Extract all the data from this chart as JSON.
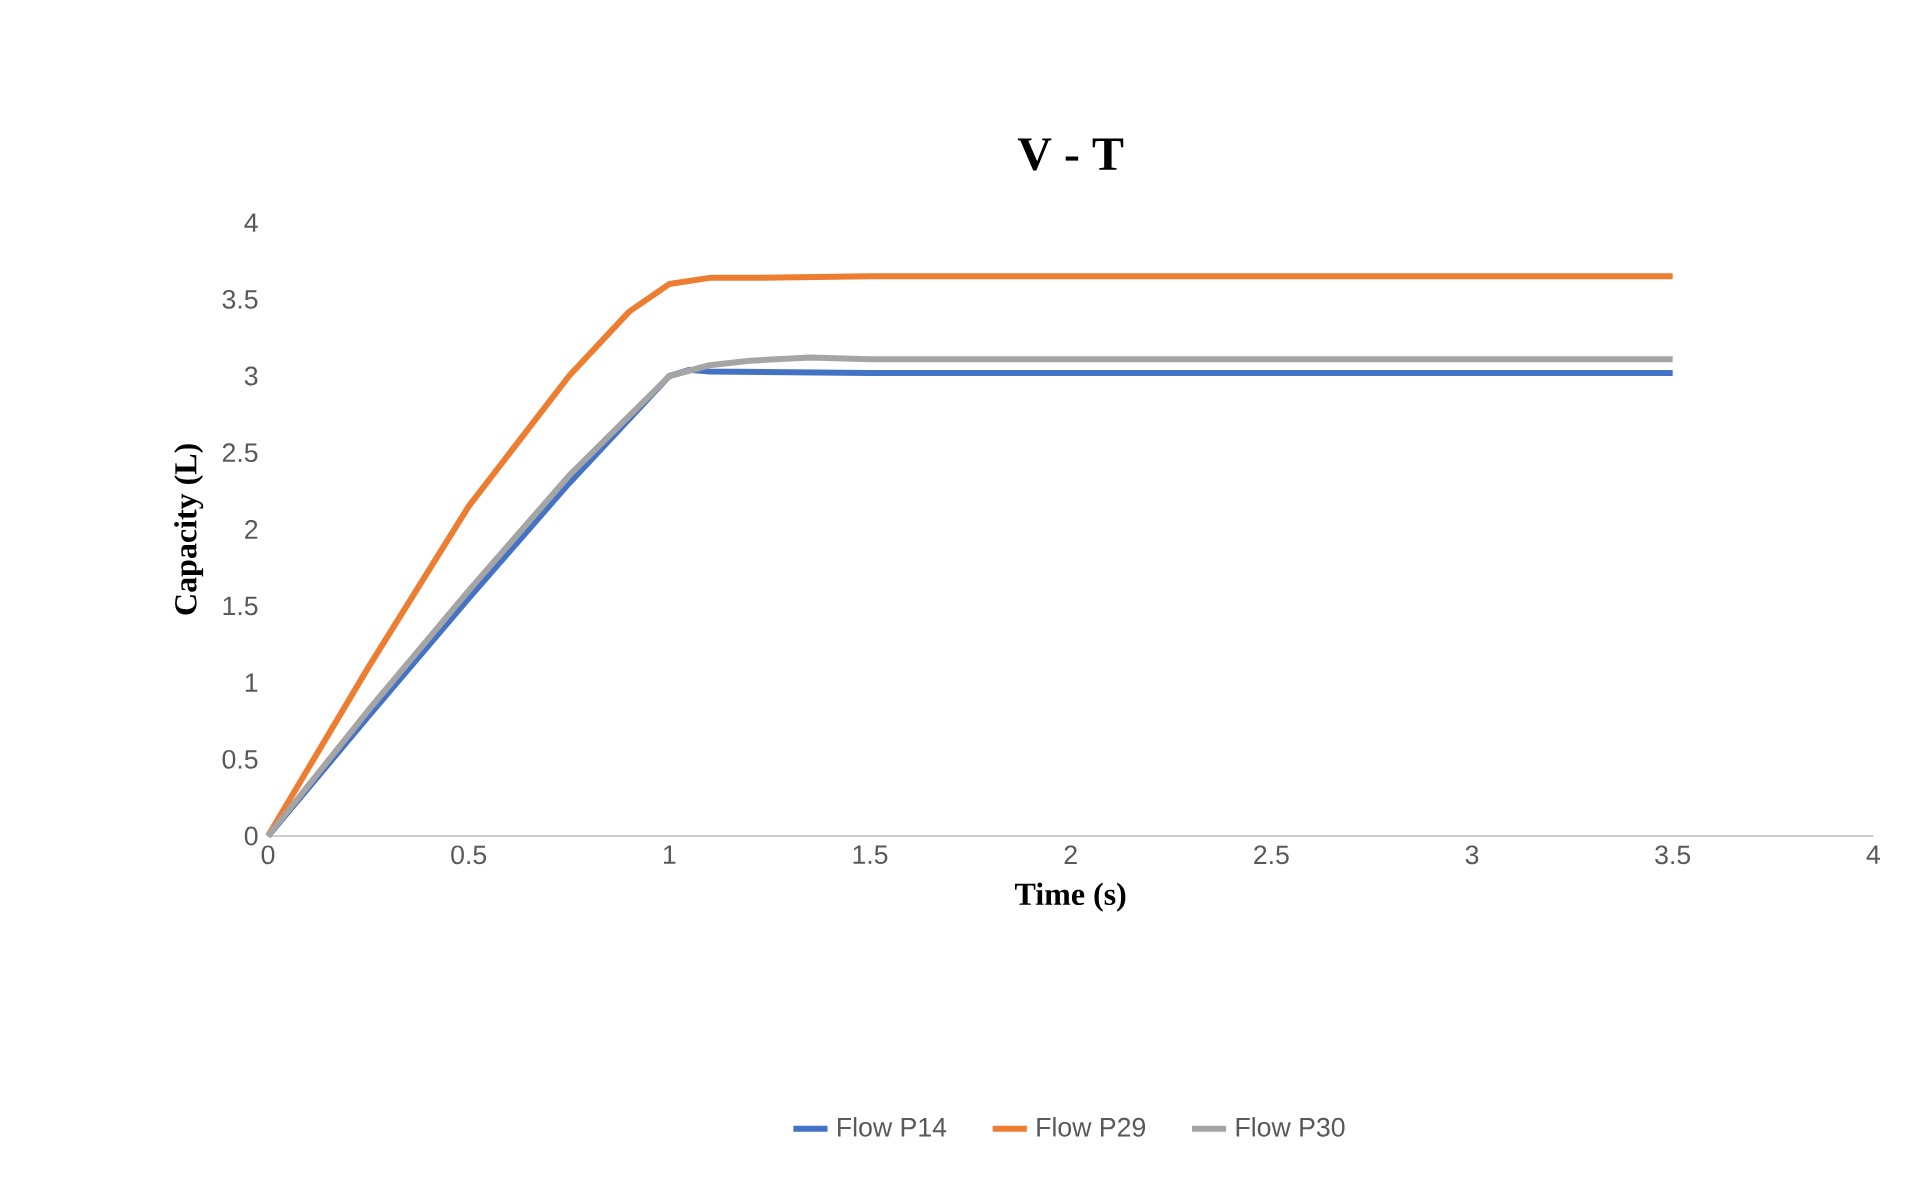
{
  "chart_data": {
    "type": "line",
    "title": "V - T",
    "xlabel": "Time (s)",
    "ylabel": "Capacity (L)",
    "xlim": [
      0,
      4
    ],
    "xticks": [
      0,
      0.5,
      1,
      1.5,
      2,
      2.5,
      3,
      3.5,
      4
    ],
    "ylim": [
      0,
      4
    ],
    "yticks": [
      0,
      0.5,
      1,
      1.5,
      2,
      2.5,
      3,
      3.5,
      4
    ],
    "legend": "bottom",
    "line_style": "solid",
    "series": [
      {
        "name": "Flow P14",
        "color": "#4472c4",
        "x": [
          0,
          0.25,
          0.5,
          0.75,
          1.0,
          1.05,
          1.1,
          1.5,
          2.5,
          3.5
        ],
        "values": [
          0,
          0.78,
          1.55,
          2.3,
          3.0,
          3.04,
          3.03,
          3.02,
          3.02,
          3.02
        ]
      },
      {
        "name": "Flow P29",
        "color": "#ed7d31",
        "x": [
          0,
          0.25,
          0.5,
          0.75,
          0.9,
          1.0,
          1.1,
          1.2,
          1.5,
          2.5,
          3.5
        ],
        "values": [
          0,
          1.1,
          2.15,
          3.0,
          3.42,
          3.6,
          3.64,
          3.64,
          3.65,
          3.65,
          3.65
        ]
      },
      {
        "name": "Flow P30",
        "color": "#a5a5a5",
        "x": [
          0,
          0.25,
          0.5,
          0.75,
          1.0,
          1.1,
          1.2,
          1.35,
          1.5,
          2.5,
          3.5
        ],
        "values": [
          0,
          0.82,
          1.6,
          2.35,
          3.0,
          3.07,
          3.1,
          3.12,
          3.11,
          3.11,
          3.11
        ]
      }
    ]
  }
}
